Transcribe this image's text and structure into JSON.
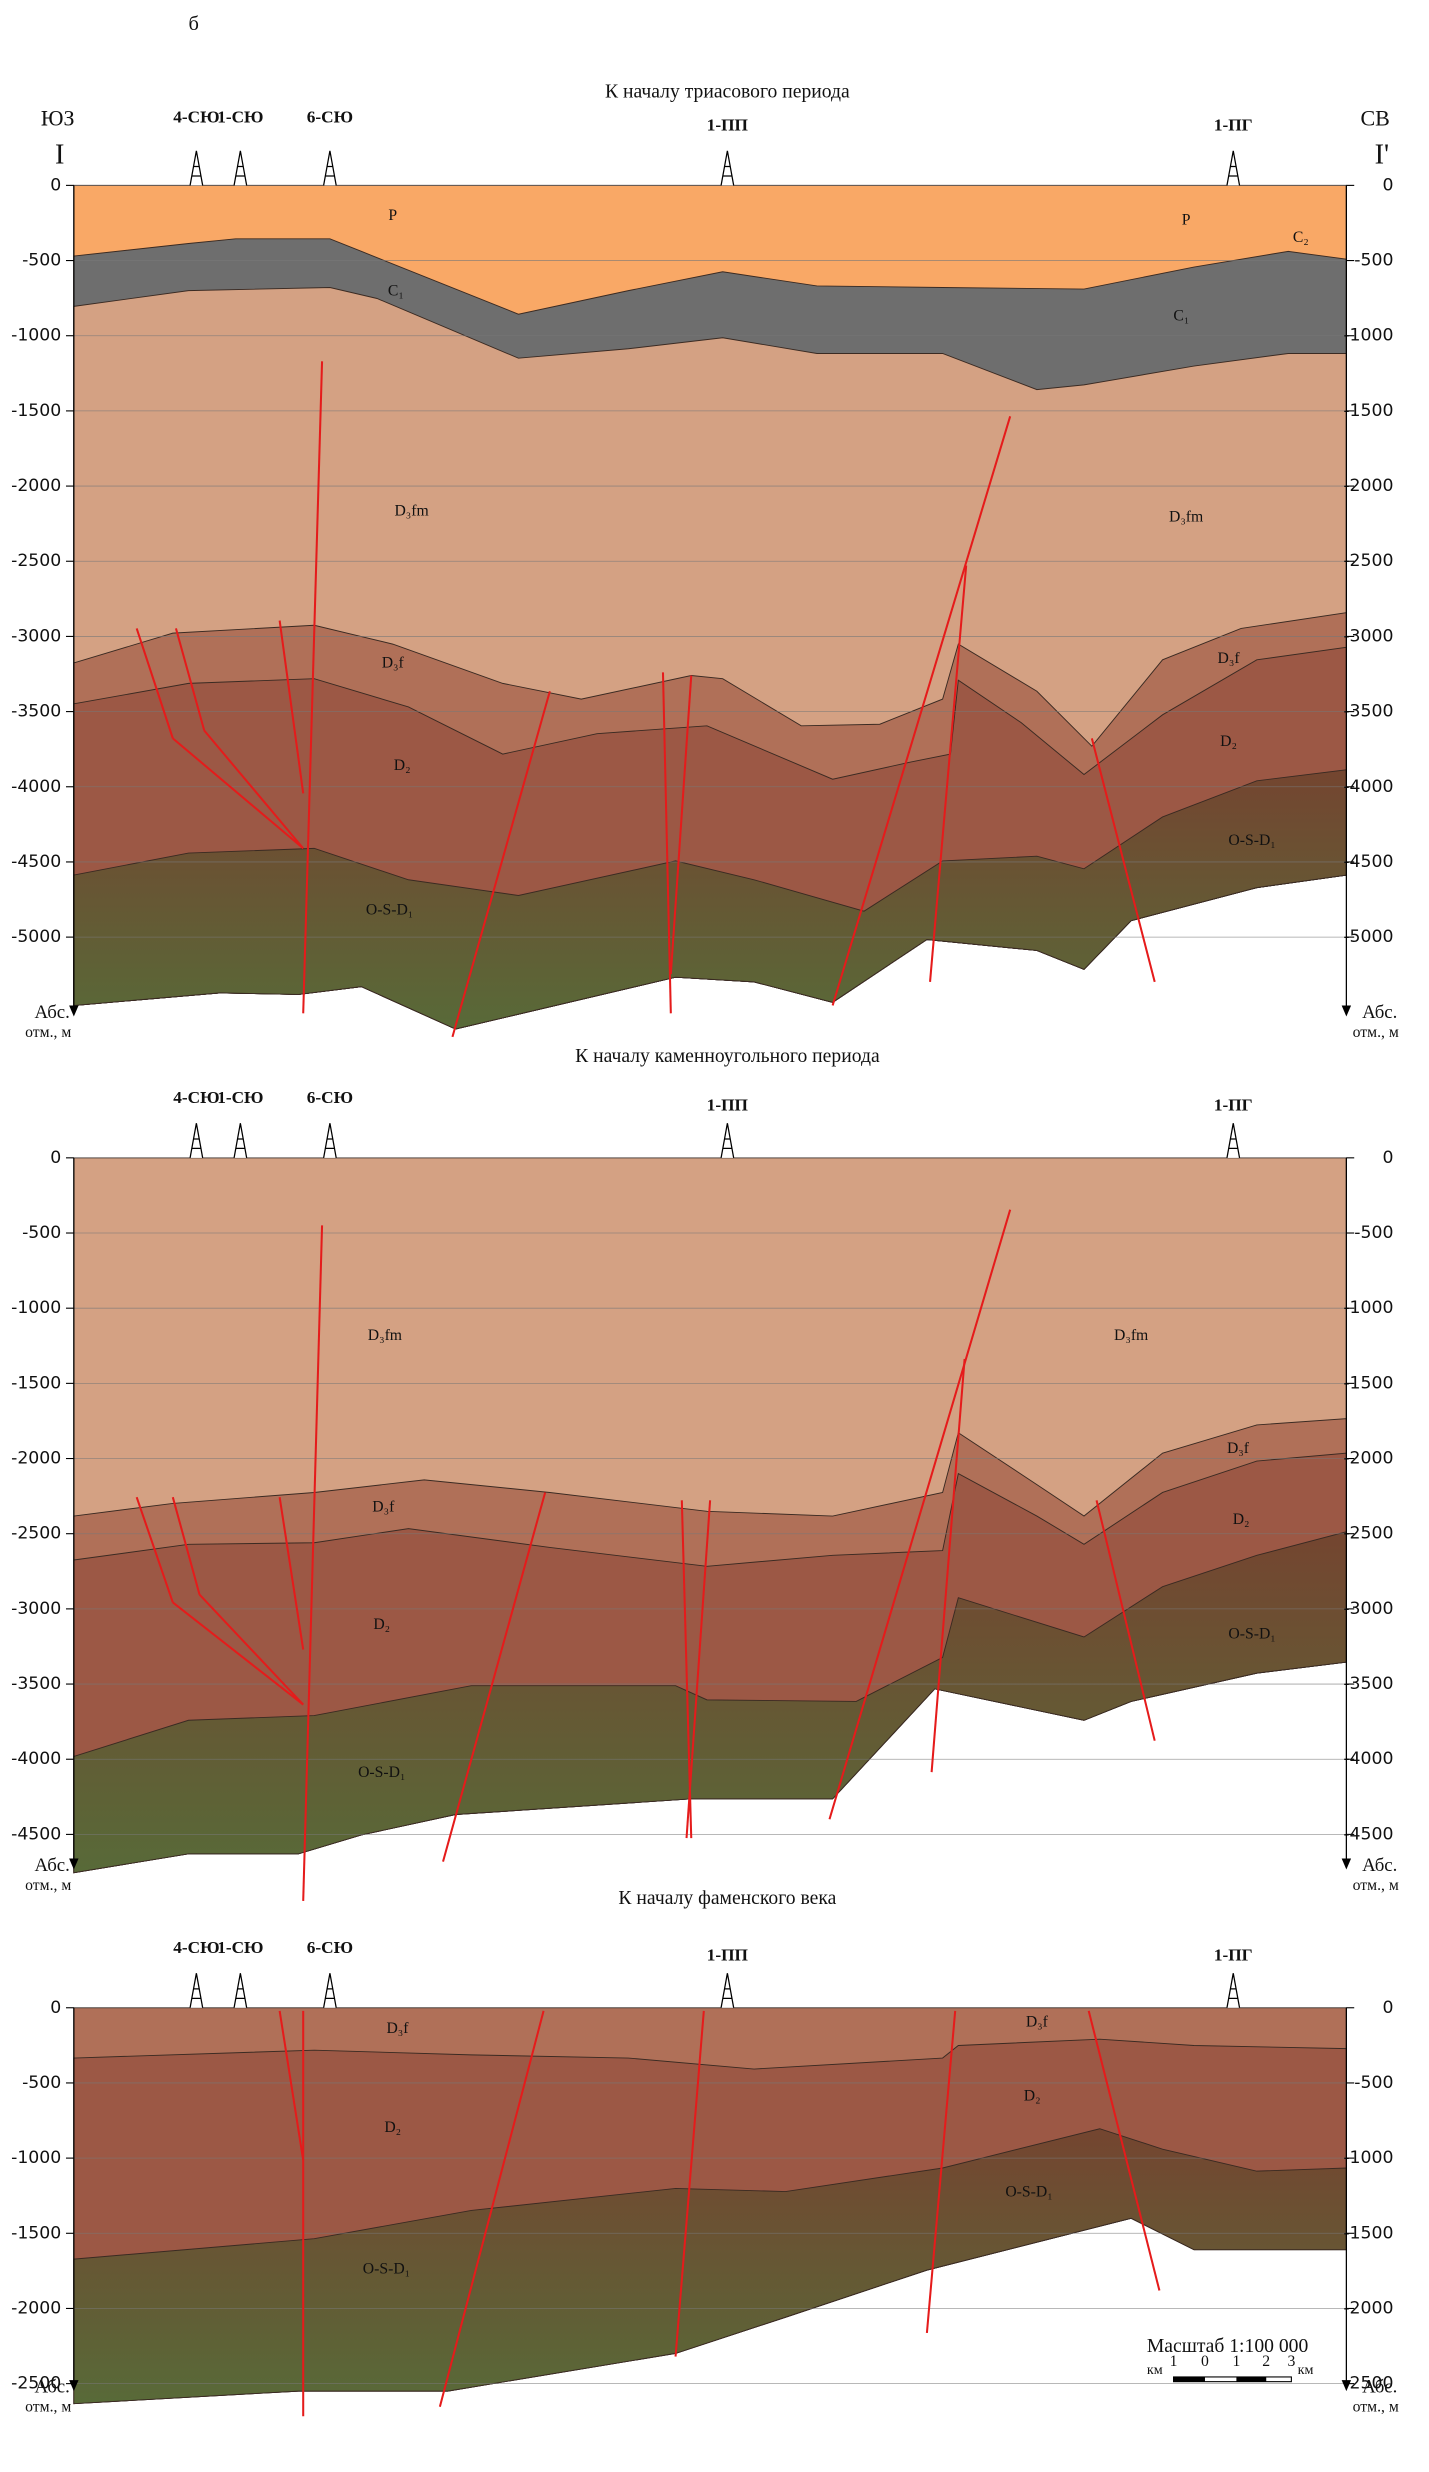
{
  "header": {
    "label": "б",
    "left_code": "ЮЗ",
    "left_mark": "I",
    "right_code": "СВ",
    "right_mark": "I'"
  },
  "axis_label": {
    "line1": "Абс.",
    "line2": "отм., м"
  },
  "wells": [
    "4-СЮ",
    "1-СЮ",
    "6-СЮ",
    "1-ПП",
    "1-ПГ"
  ],
  "panels": [
    {
      "title": "К началу триасового периода",
      "ticks": [
        0,
        -500,
        -1000,
        -1500,
        -2000,
        -2500,
        -3000,
        -3500,
        -4000,
        -4500,
        -5000
      ],
      "labels": [
        "P",
        "P",
        "C₂",
        "C₁",
        "C₁",
        "D₃fm",
        "D₃fm",
        "D₃f",
        "D₃f",
        "D₂",
        "D₂",
        "O-S-D₁",
        "O-S-D₁"
      ]
    },
    {
      "title": "К началу каменноугольного периода",
      "ticks": [
        0,
        -500,
        -1000,
        -1500,
        -2000,
        -2500,
        -3000,
        -3500,
        -4000,
        -4500
      ],
      "labels": [
        "D₃fm",
        "D₃fm",
        "D₃f",
        "D₃f",
        "D₂",
        "D₂",
        "O-S-D₁",
        "O-S-D₁"
      ]
    },
    {
      "title": "К началу фаменского века",
      "ticks": [
        0,
        -500,
        -1000,
        -1500,
        -2000,
        -2500
      ],
      "labels": [
        "D₃f",
        "D₃f",
        "D₂",
        "D₂",
        "O-S-D₁",
        "O-S-D₁"
      ]
    }
  ],
  "scale": {
    "title": "Масштаб 1:100 000",
    "unit": "км",
    "marks": [
      "1",
      "0",
      "1",
      "2",
      "3"
    ]
  }
}
